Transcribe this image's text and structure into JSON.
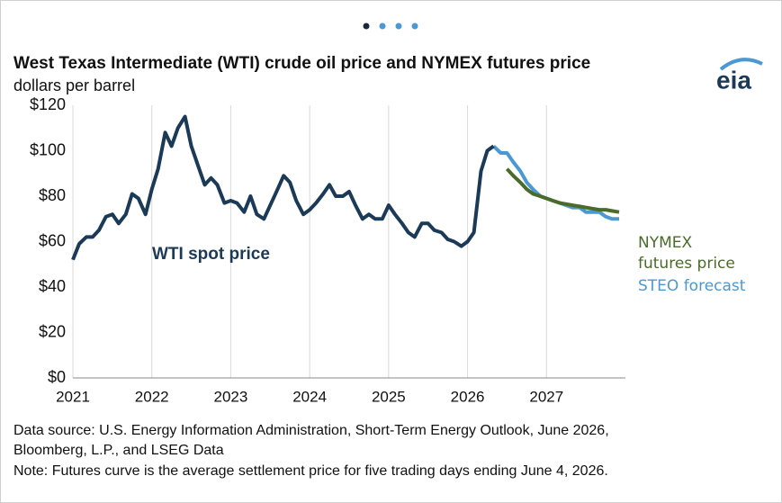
{
  "chart_data": {
    "type": "line",
    "title": "West Texas Intermediate (WTI) crude oil price and NYMEX futures price",
    "subtitle": "dollars per barrel",
    "logo": "eia",
    "source": [
      "Data source: U.S. Energy Information Administration, Short-Term Energy Outlook, June 2026,",
      "Bloomberg, L.P., and LSEG Data"
    ],
    "note": "Note: Futures curve is the average settlement price for five trading days ending June 4, 2026.",
    "xlim": [
      2021,
      2028
    ],
    "xticks": [
      2021,
      2022,
      2023,
      2024,
      2025,
      2026,
      2027
    ],
    "ylim": [
      0,
      120
    ],
    "yticks": [
      {
        "value": 0,
        "label": "$0"
      },
      {
        "value": 20,
        "label": "$20"
      },
      {
        "value": 40,
        "label": "$40"
      },
      {
        "value": 60,
        "label": "$60"
      },
      {
        "value": 80,
        "label": "$80"
      },
      {
        "value": 100,
        "label": "$100"
      },
      {
        "value": 120,
        "label": "$120"
      }
    ],
    "grid": "x",
    "series": [
      {
        "name": "STEO forecast",
        "color": "#4a98d4",
        "x": [
          2026.33,
          2026.42,
          2026.5,
          2026.58,
          2026.67,
          2026.75,
          2026.83,
          2026.92,
          2027,
          2027.08,
          2027.17,
          2027.25,
          2027.33,
          2027.42,
          2027.5,
          2027.58,
          2027.67,
          2027.75,
          2027.83,
          2027.92
        ],
        "values": [
          102,
          99,
          99,
          95,
          91,
          86,
          83,
          80,
          79,
          78,
          77,
          76,
          75,
          75,
          73,
          73,
          73,
          71,
          70,
          70
        ]
      },
      {
        "name": "NYMEX futures price",
        "color": "#4b6b2a",
        "x": [
          2026.5,
          2026.58,
          2026.67,
          2026.75,
          2026.83,
          2026.92,
          2027,
          2027.08,
          2027.17,
          2027.25,
          2027.33,
          2027.42,
          2027.5,
          2027.58,
          2027.67,
          2027.75,
          2027.83,
          2027.92
        ],
        "values": [
          92,
          89,
          86,
          83,
          81,
          80,
          79,
          78,
          77,
          76.5,
          76,
          75.5,
          75,
          74.5,
          74,
          74,
          73.5,
          73
        ]
      },
      {
        "name": "WTI spot price",
        "color": "#1b3a57",
        "x": [
          2021,
          2021.08,
          2021.17,
          2021.25,
          2021.33,
          2021.42,
          2021.5,
          2021.58,
          2021.67,
          2021.75,
          2021.83,
          2021.92,
          2022,
          2022.08,
          2022.17,
          2022.25,
          2022.33,
          2022.42,
          2022.5,
          2022.58,
          2022.67,
          2022.75,
          2022.83,
          2022.92,
          2023,
          2023.08,
          2023.17,
          2023.25,
          2023.33,
          2023.42,
          2023.5,
          2023.58,
          2023.67,
          2023.75,
          2023.83,
          2023.92,
          2024,
          2024.08,
          2024.17,
          2024.25,
          2024.33,
          2024.42,
          2024.5,
          2024.58,
          2024.67,
          2024.75,
          2024.83,
          2024.92,
          2025,
          2025.08,
          2025.17,
          2025.25,
          2025.33,
          2025.42,
          2025.5,
          2025.58,
          2025.67,
          2025.75,
          2025.83,
          2025.92,
          2026,
          2026.08,
          2026.17,
          2026.25,
          2026.33
        ],
        "values": [
          52,
          59,
          62,
          62,
          65,
          71,
          72,
          68,
          72,
          81,
          79,
          72,
          83,
          92,
          108,
          102,
          110,
          115,
          102,
          94,
          85,
          88,
          85,
          77,
          78,
          77,
          73,
          80,
          72,
          70,
          76,
          82,
          89,
          86,
          78,
          72,
          74,
          77,
          81,
          85,
          80,
          80,
          82,
          76,
          70,
          72,
          70,
          70,
          76,
          72,
          68,
          64,
          62,
          68,
          68,
          65,
          64,
          61,
          60,
          58,
          60,
          64,
          91,
          100,
          102
        ]
      }
    ]
  }
}
